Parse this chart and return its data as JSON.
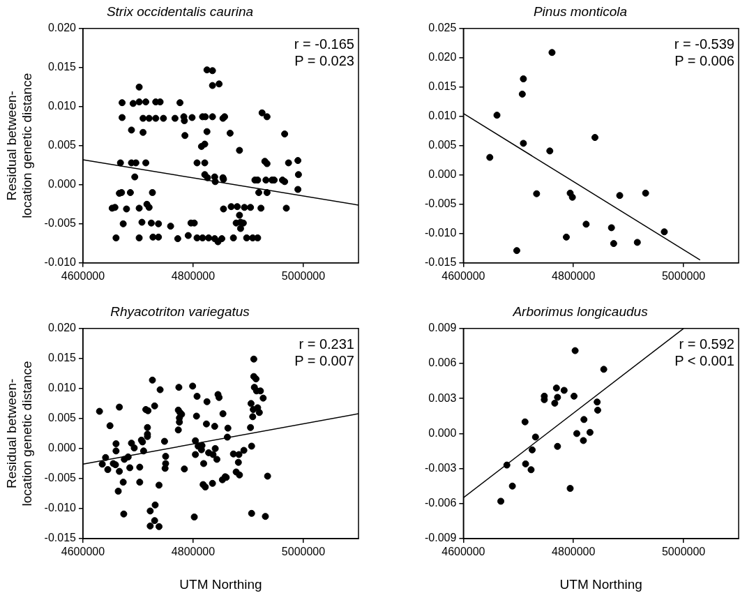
{
  "chart_data": [
    {
      "type": "scatter",
      "title": "Strix occidentalis caurina",
      "ylabel": "Residual between-location genetic distance",
      "xlim": [
        4600000,
        5100000
      ],
      "xticks": [
        4600000,
        4800000,
        5000000
      ],
      "ylim": [
        -0.01,
        0.02
      ],
      "yticks": [
        {
          "value": -0.01,
          "label": "-0.010"
        },
        {
          "value": -0.005,
          "label": "-0.005"
        },
        {
          "value": 0,
          "label": "0.000"
        },
        {
          "value": 0.005,
          "label": "0.005"
        },
        {
          "value": 0.01,
          "label": "0.010"
        },
        {
          "value": 0.015,
          "label": "0.015"
        },
        {
          "value": 0.02,
          "label": "0.020"
        }
      ],
      "annotations": [
        "r = -0.165",
        "P = 0.023"
      ],
      "marker": "circle",
      "series": [
        {
          "color": "#000000",
          "x": [
            4653000,
            4658000,
            4666000,
            4670000,
            4660000,
            4673000,
            4668000,
            4671000,
            4671000,
            4679000,
            4686000,
            4688000,
            4688000,
            4691000,
            4694000,
            4696000,
            4702000,
            4702000,
            4702000,
            4702000,
            4707000,
            4709000,
            4709000,
            4714000,
            4714000,
            4716000,
            4720000,
            4720000,
            4726000,
            4724000,
            4727000,
            4732000,
            4732000,
            4737000,
            4737000,
            4740000,
            4746000,
            4759000,
            4767000,
            4772000,
            4776000,
            4783000,
            4784000,
            4785000,
            4791000,
            4798000,
            4796000,
            4802000,
            4807000,
            4807000,
            4815000,
            4821000,
            4817000,
            4822000,
            4821000,
            4821000,
            4825000,
            4826000,
            4825000,
            4835000,
            4835000,
            4847000,
            4835000,
            4817000,
            4828000,
            4839000,
            4845000,
            4852000,
            4839000,
            4840000,
            4854000,
            4855000,
            4855000,
            4854000,
            4857000,
            4867000,
            4869000,
            4880000,
            4873000,
            4878000,
            4884000,
            4884000,
            4886000,
            4886000,
            4891000,
            4893000,
            4897000,
            4904000,
            4908000,
            4917000,
            4912000,
            4917000,
            4919000,
            4923000,
            4925000,
            4934000,
            4930000,
            4934000,
            4932000,
            4934000,
            4943000,
            4947000,
            4962000,
            4966000,
            4966000,
            4969000,
            4973000,
            4990000,
            4991000,
            4990000
          ],
          "values": [
            -0.003,
            -0.0029,
            -0.0011,
            -0.001,
            -0.0068,
            -0.005,
            0.0028,
            0.0086,
            0.0105,
            -0.0031,
            -0.001,
            0.007,
            0.0028,
            0.0104,
            0.001,
            0.0028,
            0.0125,
            0.0106,
            -0.003,
            -0.0068,
            -0.0048,
            0.0067,
            0.0085,
            0.0106,
            0.0028,
            -0.0025,
            -0.0029,
            0.0085,
            -0.001,
            -0.0049,
            -0.0067,
            0.0106,
            0.0085,
            -0.005,
            -0.0067,
            0.0106,
            0.0085,
            -0.0053,
            0.0085,
            -0.0069,
            0.0105,
            0.0087,
            0.0082,
            0.0063,
            -0.0065,
            0.0086,
            -0.0049,
            -0.0049,
            0.0028,
            -0.0068,
            0.0049,
            0.0052,
            0.0087,
            0.0087,
            0.0028,
            0.0013,
            0.0068,
            0.0009,
            0.0147,
            0.0146,
            0.0127,
            0.0129,
            0.0087,
            -0.0068,
            -0.0068,
            -0.0069,
            -0.0073,
            -0.0069,
            0.001,
            0.0004,
            0.0009,
            0.0007,
            -0.0031,
            0.0085,
            0.0087,
            0.0066,
            -0.0028,
            -0.0028,
            -0.0068,
            -0.0049,
            -0.0039,
            0.0044,
            -0.0048,
            -0.0056,
            -0.0049,
            -0.0029,
            -0.0068,
            -0.0029,
            -0.0068,
            -0.0068,
            0.0006,
            0.0006,
            -0.001,
            -0.003,
            0.0092,
            0.0087,
            0.003,
            0.0027,
            0.0006,
            -0.001,
            0.0006,
            0.0006,
            0.0006,
            0.0004,
            0.0065,
            -0.003,
            0.0028,
            0.0031,
            0.0013,
            -0.0006
          ]
        },
        {
          "type": "line",
          "marker": "none",
          "color": "#000000",
          "x": [
            4600000,
            5100000
          ],
          "values": [
            0.0032,
            -0.0026
          ]
        }
      ]
    },
    {
      "type": "scatter",
      "title": "Pinus monticola",
      "xlim": [
        4600000,
        5100000
      ],
      "xticks": [
        4600000,
        4800000,
        5000000
      ],
      "ylim": [
        -0.015,
        0.025
      ],
      "yticks": [
        {
          "value": -0.015,
          "label": "-0.015"
        },
        {
          "value": -0.01,
          "label": "-0.010"
        },
        {
          "value": -0.005,
          "label": "-0.005"
        },
        {
          "value": 0,
          "label": "0.000"
        },
        {
          "value": 0.005,
          "label": "0.005"
        },
        {
          "value": 0.01,
          "label": "0.010"
        },
        {
          "value": 0.015,
          "label": "0.015"
        },
        {
          "value": 0.02,
          "label": "0.020"
        },
        {
          "value": 0.025,
          "label": "0.025"
        }
      ],
      "annotations": [
        "r = -0.539",
        "P = 0.006"
      ],
      "marker": "circle",
      "series": [
        {
          "color": "#000000",
          "x": [
            4648000,
            4661000,
            4697000,
            4707000,
            4709000,
            4709000,
            4733000,
            4757000,
            4761000,
            4787000,
            4794000,
            4798000,
            4823000,
            4839000,
            4869000,
            4873000,
            4884000,
            4916000,
            4931000,
            4965000
          ],
          "values": [
            0.003,
            0.0102,
            -0.0129,
            0.0138,
            0.0164,
            0.0054,
            -0.0032,
            0.0041,
            0.0209,
            -0.0106,
            -0.0031,
            -0.0038,
            -0.0084,
            0.0064,
            -0.009,
            -0.0117,
            -0.0035,
            -0.0115,
            -0.0031,
            -0.0097
          ]
        },
        {
          "type": "line",
          "marker": "none",
          "color": "#000000",
          "x": [
            4600000,
            5030000
          ],
          "values": [
            0.0105,
            -0.0145
          ]
        }
      ]
    },
    {
      "type": "scatter",
      "title": "Rhyacotriton variegatus",
      "ylabel": "Residual between-location genetic distance",
      "xlabel": "UTM Northing",
      "xlim": [
        4600000,
        5100000
      ],
      "xticks": [
        4600000,
        4800000,
        5000000
      ],
      "ylim": [
        -0.015,
        0.02
      ],
      "yticks": [
        {
          "value": -0.015,
          "label": "-0.015"
        },
        {
          "value": -0.01,
          "label": "-0.010"
        },
        {
          "value": -0.005,
          "label": "-0.005"
        },
        {
          "value": 0,
          "label": "0.000"
        },
        {
          "value": 0.005,
          "label": "0.005"
        },
        {
          "value": 0.01,
          "label": "0.010"
        },
        {
          "value": 0.015,
          "label": "0.015"
        },
        {
          "value": 0.02,
          "label": "0.020"
        }
      ],
      "annotations": [
        "r = 0.231",
        "P = 0.007"
      ],
      "marker": "circle",
      "series": [
        {
          "color": "#000000",
          "x": [
            4630000,
            4635000,
            4641000,
            4645000,
            4649000,
            4655000,
            4659000,
            4660000,
            4660000,
            4666000,
            4666000,
            4664000,
            4673000,
            4674000,
            4675000,
            4682000,
            4685000,
            4688000,
            4693000,
            4703000,
            4703000,
            4706000,
            4708000,
            4710000,
            4714000,
            4718000,
            4717000,
            4717000,
            4717000,
            4722000,
            4722000,
            4726000,
            4730000,
            4730000,
            4731000,
            4738000,
            4738000,
            4740000,
            4748000,
            4750000,
            4750000,
            4749000,
            4774000,
            4773000,
            4776000,
            4779000,
            4775000,
            4775000,
            4773000,
            4784000,
            4799000,
            4802000,
            4804000,
            4804000,
            4806000,
            4807000,
            4809000,
            4815000,
            4816000,
            4818000,
            4819000,
            4822000,
            4824000,
            4825000,
            4828000,
            4835000,
            4836000,
            4839000,
            4840000,
            4843000,
            4845000,
            4847000,
            4853000,
            4854000,
            4858000,
            4860000,
            4862000,
            4863000,
            4873000,
            4878000,
            4883000,
            4882000,
            4884000,
            4892000,
            4904000,
            4905000,
            4906000,
            4906000,
            4908000,
            4909000,
            4910000,
            4910000,
            4914000,
            4911000,
            4915000,
            4917000,
            4920000,
            4922000,
            4927000,
            4931000,
            4935000
          ],
          "values": [
            0.0062,
            -0.0026,
            -0.0015,
            -0.0035,
            0.0038,
            -0.0025,
            -0.0027,
            0.0008,
            -0.0004,
            0.0069,
            -0.0038,
            -0.0071,
            -0.0056,
            -0.0109,
            -0.0018,
            -0.0014,
            -0.0032,
            0.0009,
            0.0001,
            -0.0031,
            -0.0056,
            0.0014,
            0.0011,
            -0.0004,
            0.0065,
            0.0063,
            0.0035,
            0.0024,
            0.002,
            -0.0104,
            -0.0129,
            0.0114,
            0.0071,
            -0.012,
            -0.0094,
            -0.0061,
            -0.013,
            0.0098,
            0.0012,
            -0.0013,
            -0.0025,
            -0.0033,
            0.0102,
            0.0064,
            0.006,
            0.0057,
            0.0051,
            0.0044,
            0.0031,
            -0.0034,
            0.0104,
            -0.0114,
            0.0013,
            -0.001,
            0.0054,
            0.0087,
            0.0004,
            -0.0002,
            0.0005,
            -0.006,
            -0.0025,
            -0.0064,
            0.0041,
            0.0078,
            -0.0007,
            -0.0058,
            -0.001,
            0.0037,
            0,
            -0.0018,
            0.009,
            0.0085,
            -0.0052,
            0.0058,
            -0.0047,
            -0.0048,
            0.0019,
            0.0034,
            -0.0009,
            -0.0039,
            -0.001,
            -0.0023,
            -0.0044,
            -0.0003,
            0.0035,
            0.0075,
            0.0004,
            -0.0108,
            0.0053,
            0.0065,
            0.0149,
            0.012,
            0.0116,
            0.0102,
            0.0096,
            0.0068,
            0.006,
            0.0096,
            0.0084,
            -0.0113,
            -0.0046
          ]
        },
        {
          "type": "line",
          "marker": "none",
          "color": "#000000",
          "x": [
            4600000,
            5100000
          ],
          "values": [
            -0.0026,
            0.0058
          ]
        }
      ]
    },
    {
      "type": "scatter",
      "title": "Arborimus longicaudus",
      "xlabel": "UTM Northing",
      "xlim": [
        4600000,
        5100000
      ],
      "xticks": [
        4600000,
        4800000,
        5000000
      ],
      "ylim": [
        -0.009,
        0.009
      ],
      "yticks": [
        {
          "value": -0.009,
          "label": "-0.009"
        },
        {
          "value": -0.006,
          "label": "-0.006"
        },
        {
          "value": -0.003,
          "label": "-0.003"
        },
        {
          "value": 0,
          "label": "0.000"
        },
        {
          "value": 0.003,
          "label": "0.003"
        },
        {
          "value": 0.006,
          "label": "0.006"
        },
        {
          "value": 0.009,
          "label": "0.009"
        }
      ],
      "annotations": [
        "r = 0.592",
        "P < 0.001"
      ],
      "marker": "circle",
      "series": [
        {
          "color": "#000000",
          "x": [
            4668000,
            4679000,
            4689000,
            4712000,
            4713000,
            4723000,
            4725000,
            4731000,
            4747000,
            4747000,
            4766000,
            4769000,
            4771000,
            4771000,
            4783000,
            4794000,
            4801000,
            4803000,
            4806000,
            4818000,
            4819000,
            4830000,
            4843000,
            4844000,
            4855000
          ],
          "values": [
            -0.0058,
            -0.0027,
            -0.0045,
            0.001,
            -0.0026,
            -0.0031,
            -0.0014,
            -0.0003,
            0.0032,
            0.0029,
            0.0026,
            0.0039,
            0.0031,
            -0.0011,
            0.0037,
            -0.0047,
            0.0032,
            0.0071,
            0,
            -0.0006,
            0.0012,
            0.0001,
            0.0027,
            0.002,
            0.0055
          ]
        },
        {
          "type": "line",
          "marker": "none",
          "color": "#000000",
          "x": [
            4600000,
            5000000
          ],
          "values": [
            -0.0055,
            0.009
          ]
        }
      ]
    }
  ]
}
